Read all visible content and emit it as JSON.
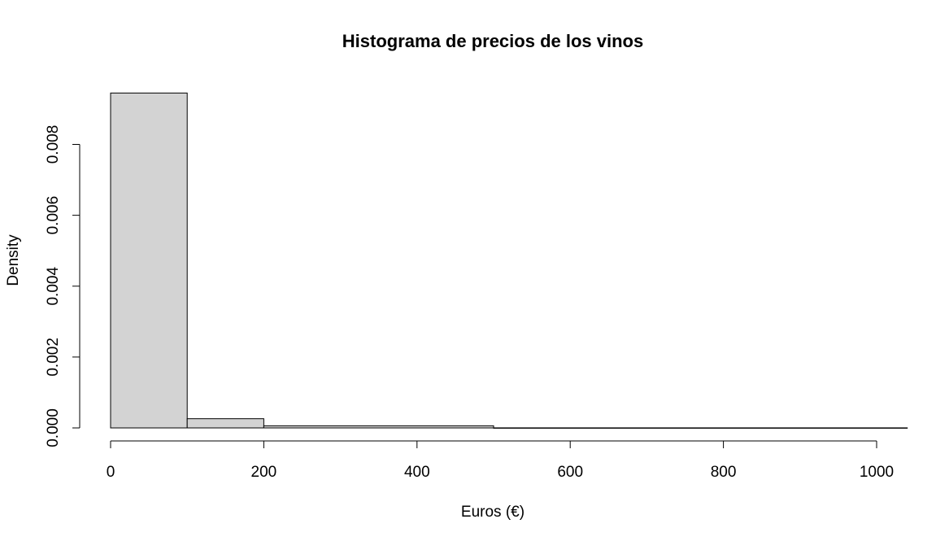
{
  "chart_data": {
    "type": "bar",
    "title": "Histograma de precios de los vinos",
    "xlabel": "Euros (€)",
    "ylabel": "Density",
    "xlim": [
      0,
      1000
    ],
    "ylim": [
      0,
      0.008
    ],
    "bins": [
      {
        "start": 0,
        "end": 100,
        "density": 0.00945
      },
      {
        "start": 100,
        "end": 200,
        "density": 0.00026
      },
      {
        "start": 200,
        "end": 500,
        "density": 6e-05
      },
      {
        "start": 500,
        "end": 1040,
        "density": 2.5e-06
      }
    ],
    "x_ticks": [
      {
        "value": 0,
        "label": "0"
      },
      {
        "value": 200,
        "label": "200"
      },
      {
        "value": 400,
        "label": "400"
      },
      {
        "value": 600,
        "label": "600"
      },
      {
        "value": 800,
        "label": "800"
      },
      {
        "value": 1000,
        "label": "1000"
      }
    ],
    "y_ticks": [
      {
        "value": 0,
        "label": "0.000"
      },
      {
        "value": 0.002,
        "label": "0.002"
      },
      {
        "value": 0.004,
        "label": "0.004"
      },
      {
        "value": 0.006,
        "label": "0.006"
      },
      {
        "value": 0.008,
        "label": "0.008"
      }
    ],
    "bar_fill": "#d3d3d3",
    "bar_stroke": "#000000",
    "grid": false,
    "legend": "none"
  }
}
